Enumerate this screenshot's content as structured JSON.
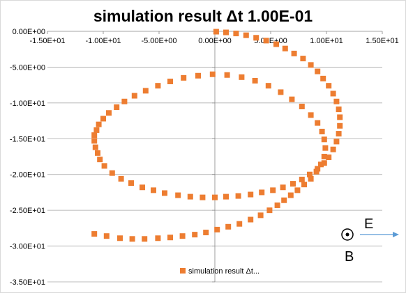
{
  "chart_data": {
    "type": "scatter",
    "title": "simulation result Δt 1.00E-01",
    "xlabel": "",
    "ylabel": "",
    "xlim": [
      -15,
      15
    ],
    "ylim": [
      -35,
      0
    ],
    "x_ticks": [
      -15,
      -10,
      -5,
      0,
      5,
      10,
      15
    ],
    "y_ticks": [
      0,
      -5,
      -10,
      -15,
      -20,
      -25,
      -30,
      -35
    ],
    "x_tick_labels": [
      "-1.50E+01",
      "-1.00E+01",
      "-5.00E+00",
      "0.00E+00",
      "5.00E+00",
      "1.00E+01",
      "1.50E+01"
    ],
    "y_tick_labels": [
      "0.00E+00",
      "-5.00E+00",
      "-1.00E+01",
      "-1.50E+01",
      "-2.00E+01",
      "-2.50E+01",
      "-3.00E+01",
      "-3.50E+01"
    ],
    "grid": "horizontal",
    "legend_position": "bottom",
    "series": [
      {
        "name": "simulation result Δt...",
        "color": "#ED7D31",
        "marker": "square",
        "points": [
          [
            0.12,
            -0.05
          ],
          [
            1.0,
            -0.15
          ],
          [
            1.9,
            -0.3
          ],
          [
            2.8,
            -0.55
          ],
          [
            3.7,
            -0.9
          ],
          [
            4.6,
            -1.3
          ],
          [
            5.5,
            -1.8
          ],
          [
            6.3,
            -2.4
          ],
          [
            7.1,
            -3.1
          ],
          [
            7.9,
            -3.8
          ],
          [
            8.6,
            -4.7
          ],
          [
            9.2,
            -5.6
          ],
          [
            9.7,
            -6.6
          ],
          [
            10.2,
            -7.6
          ],
          [
            10.6,
            -8.7
          ],
          [
            10.9,
            -9.8
          ],
          [
            11.1,
            -10.9
          ],
          [
            11.2,
            -12.0
          ],
          [
            11.2,
            -13.2
          ],
          [
            11.1,
            -14.3
          ],
          [
            10.9,
            -15.4
          ],
          [
            10.6,
            -16.5
          ],
          [
            10.2,
            -17.6
          ],
          [
            9.8,
            -18.4
          ],
          [
            9.2,
            -19.2
          ],
          [
            8.5,
            -20.0
          ],
          [
            7.8,
            -20.7
          ],
          [
            7.0,
            -21.3
          ],
          [
            6.1,
            -21.8
          ],
          [
            5.2,
            -22.2
          ],
          [
            4.2,
            -22.5
          ],
          [
            3.2,
            -22.8
          ],
          [
            2.1,
            -23.0
          ],
          [
            1.0,
            -23.1
          ],
          [
            0.0,
            -23.2
          ],
          [
            -1.1,
            -23.2
          ],
          [
            -2.2,
            -23.1
          ],
          [
            -3.3,
            -22.9
          ],
          [
            -4.5,
            -22.6
          ],
          [
            -5.5,
            -22.2
          ],
          [
            -6.5,
            -21.8
          ],
          [
            -7.5,
            -21.2
          ],
          [
            -8.4,
            -20.6
          ],
          [
            -9.2,
            -19.8
          ],
          [
            -9.9,
            -18.8
          ],
          [
            -10.3,
            -17.9
          ],
          [
            -10.5,
            -17.0
          ],
          [
            -10.7,
            -16.2
          ],
          [
            -10.8,
            -15.3
          ],
          [
            -10.8,
            -14.5
          ],
          [
            -10.6,
            -13.8
          ],
          [
            -10.4,
            -13.0
          ],
          [
            -10.0,
            -12.2
          ],
          [
            -9.5,
            -11.4
          ],
          [
            -8.8,
            -10.6
          ],
          [
            -8.1,
            -9.8
          ],
          [
            -7.2,
            -9.0
          ],
          [
            -6.2,
            -8.3
          ],
          [
            -5.1,
            -7.6
          ],
          [
            -4.0,
            -7.0
          ],
          [
            -2.8,
            -6.5
          ],
          [
            -1.5,
            -6.2
          ],
          [
            -0.2,
            -6.0
          ],
          [
            1.1,
            -6.1
          ],
          [
            2.4,
            -6.4
          ],
          [
            3.6,
            -6.9
          ],
          [
            4.8,
            -7.6
          ],
          [
            5.9,
            -8.5
          ],
          [
            6.9,
            -9.5
          ],
          [
            7.8,
            -10.5
          ],
          [
            8.6,
            -11.7
          ],
          [
            9.2,
            -12.8
          ],
          [
            9.6,
            -14.0
          ],
          [
            9.8,
            -15.1
          ],
          [
            9.9,
            -16.3
          ],
          [
            9.8,
            -17.5
          ],
          [
            9.5,
            -18.6
          ],
          [
            9.1,
            -19.6
          ],
          [
            8.6,
            -20.6
          ],
          [
            8.0,
            -21.4
          ],
          [
            7.4,
            -22.2
          ],
          [
            6.8,
            -22.9
          ],
          [
            6.2,
            -23.6
          ],
          [
            5.6,
            -24.3
          ],
          [
            4.9,
            -25.0
          ],
          [
            4.1,
            -25.7
          ],
          [
            3.2,
            -26.3
          ],
          [
            2.2,
            -26.9
          ],
          [
            1.2,
            -27.3
          ],
          [
            0.2,
            -27.7
          ],
          [
            -0.8,
            -28.1
          ],
          [
            -1.8,
            -28.4
          ],
          [
            -2.9,
            -28.6
          ],
          [
            -4.0,
            -28.8
          ],
          [
            -5.1,
            -28.9
          ],
          [
            -6.3,
            -29.0
          ],
          [
            -7.4,
            -29.0
          ],
          [
            -8.5,
            -28.9
          ],
          [
            -9.7,
            -28.6
          ],
          [
            -10.8,
            -28.3
          ]
        ]
      }
    ]
  },
  "annotations": {
    "arrow_label": "E",
    "field_symbol_label": "B",
    "arrow_color": "#5B9BD5"
  }
}
